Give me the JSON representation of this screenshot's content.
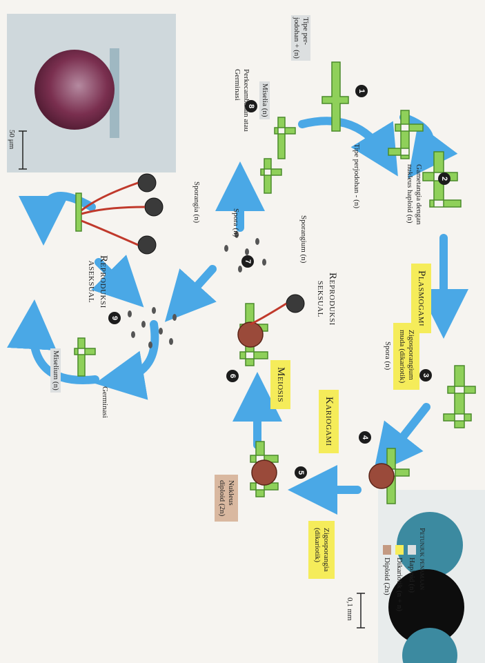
{
  "colors": {
    "haploid": "#dcdfe0",
    "dikariotik": "#f5ec5a",
    "diploid": "#c49a82",
    "hypha": "#8fd05a",
    "arrow": "#4aa8e6"
  },
  "labels": {
    "tipe_plus": "Tipe per-\njodohan + (n)",
    "tipe_minus": "Tipe perjodohan - (n)",
    "gametangia": "Gametangia dengan\nnukleus haploid (n)",
    "plasmogami": "Plasmogami",
    "zigo_muda": "Zigosporangium\nmuda (dikariotik)",
    "kariogami": "Kariogami",
    "zigo_dik": "Zigosporangia\n(dikariotik)",
    "nukleus_diploid": "Nukleus\ndiploid (2n)",
    "meiosis": "Meiosis",
    "sporangium": "Sporangium (n)",
    "reproduksi_seksual": "Reproduksi\nseksual",
    "spora_top": "Spora (n)",
    "sporangia": "Sporangia (n)",
    "miselia": "Miselia (n)",
    "perkecambahan": "Perkecambahan atau\nGerminasi",
    "reproduksi_aseksual": "Reproduksi\naseksual",
    "spora_bottom": "Spora (n)",
    "miselium": "Miselium (n)",
    "germinasi": "Germinasi",
    "scale_50": "50 μm",
    "scale_01": "0,1 mm"
  },
  "legend": {
    "title": "Petunjuk penamaan",
    "items": [
      "Haploid (n)",
      "Dikariotik (n + n)",
      "Diploid (2n)"
    ]
  },
  "steps": [
    "1",
    "2",
    "3",
    "4",
    "5",
    "6",
    "7",
    "8",
    "9"
  ]
}
